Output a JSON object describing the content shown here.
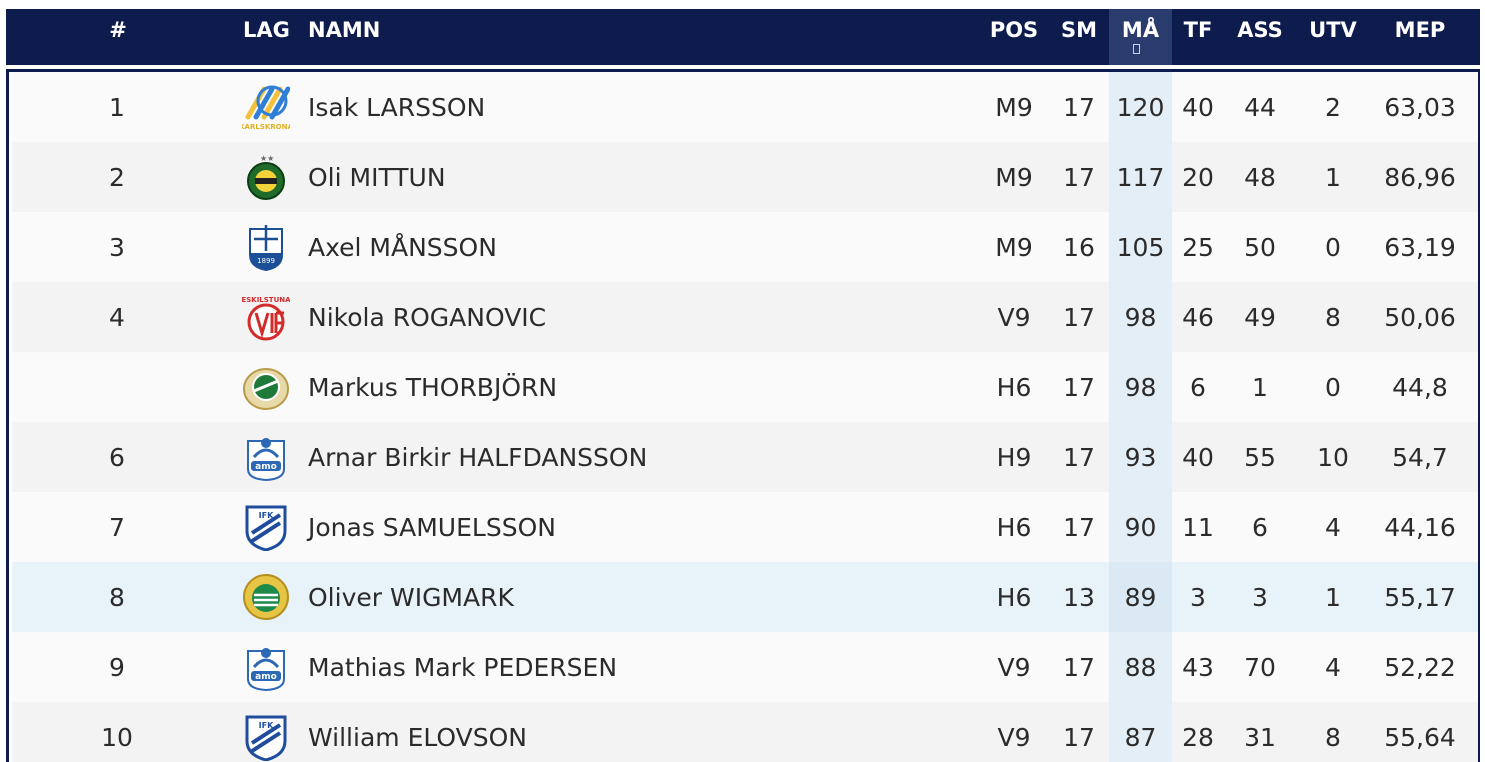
{
  "header": {
    "rank": "#",
    "team": "LAG",
    "name": "NAMN",
    "pos": "POS",
    "sm": "SM",
    "ma": "MÅ",
    "tf": "TF",
    "ass": "ASS",
    "utv": "UTV",
    "mep": "MEP"
  },
  "colors": {
    "header_bg": "#0d1b4d",
    "sorted_col": "#e3eef6",
    "highlight_row": "#e8f2f9"
  },
  "rows": [
    {
      "rank": "1",
      "team_logo": "karlskrona-logo",
      "logo_text": "KARLSKRONA",
      "name": "Isak LARSSON",
      "pos": "M9",
      "sm": "17",
      "ma": "120",
      "tf": "40",
      "ass": "44",
      "utv": "2",
      "mep": "63,03"
    },
    {
      "rank": "2",
      "team_logo": "broberg-logo",
      "logo_text": "",
      "name": "Oli MITTUN",
      "pos": "M9",
      "sm": "17",
      "ma": "117",
      "tf": "20",
      "ass": "48",
      "utv": "1",
      "mep": "86,96"
    },
    {
      "rank": "3",
      "team_logo": "ofk-logo",
      "logo_text": "1899",
      "name": "Axel MÅNSSON",
      "pos": "M9",
      "sm": "16",
      "ma": "105",
      "tf": "25",
      "ass": "50",
      "utv": "0",
      "mep": "63,19"
    },
    {
      "rank": "4",
      "team_logo": "eskilstuna-vif-logo",
      "logo_text": "ESKILSTUNA",
      "name": "Nikola ROGANOVIC",
      "pos": "V9",
      "sm": "17",
      "ma": "98",
      "tf": "46",
      "ass": "49",
      "utv": "8",
      "mep": "50,06"
    },
    {
      "rank": "",
      "team_logo": "sandviken-logo",
      "logo_text": "",
      "name": "Markus THORBJÖRN",
      "pos": "H6",
      "sm": "17",
      "ma": "98",
      "tf": "6",
      "ass": "1",
      "utv": "0",
      "mep": "44,8"
    },
    {
      "rank": "6",
      "team_logo": "amo-logo",
      "logo_text": "amo",
      "name": "Arnar Birkir HALFDANSSON",
      "pos": "H9",
      "sm": "17",
      "ma": "93",
      "tf": "40",
      "ass": "55",
      "utv": "10",
      "mep": "54,7"
    },
    {
      "rank": "7",
      "team_logo": "ifk-skovde-logo",
      "logo_text": "IFK",
      "name": "Jonas SAMUELSSON",
      "pos": "H6",
      "sm": "17",
      "ma": "90",
      "tf": "11",
      "ass": "6",
      "utv": "4",
      "mep": "44,16"
    },
    {
      "rank": "8",
      "team_logo": "hammarby-logo",
      "logo_text": "",
      "name": "Oliver WIGMARK",
      "pos": "H6",
      "sm": "13",
      "ma": "89",
      "tf": "3",
      "ass": "3",
      "utv": "1",
      "mep": "55,17"
    },
    {
      "rank": "9",
      "team_logo": "amo-logo",
      "logo_text": "amo",
      "name": "Mathias Mark PEDERSEN",
      "pos": "V9",
      "sm": "17",
      "ma": "88",
      "tf": "43",
      "ass": "70",
      "utv": "4",
      "mep": "52,22"
    },
    {
      "rank": "10",
      "team_logo": "ifk-skovde-logo",
      "logo_text": "IFK",
      "name": "William ELOVSON",
      "pos": "V9",
      "sm": "17",
      "ma": "87",
      "tf": "28",
      "ass": "31",
      "utv": "8",
      "mep": "55,64"
    }
  ]
}
